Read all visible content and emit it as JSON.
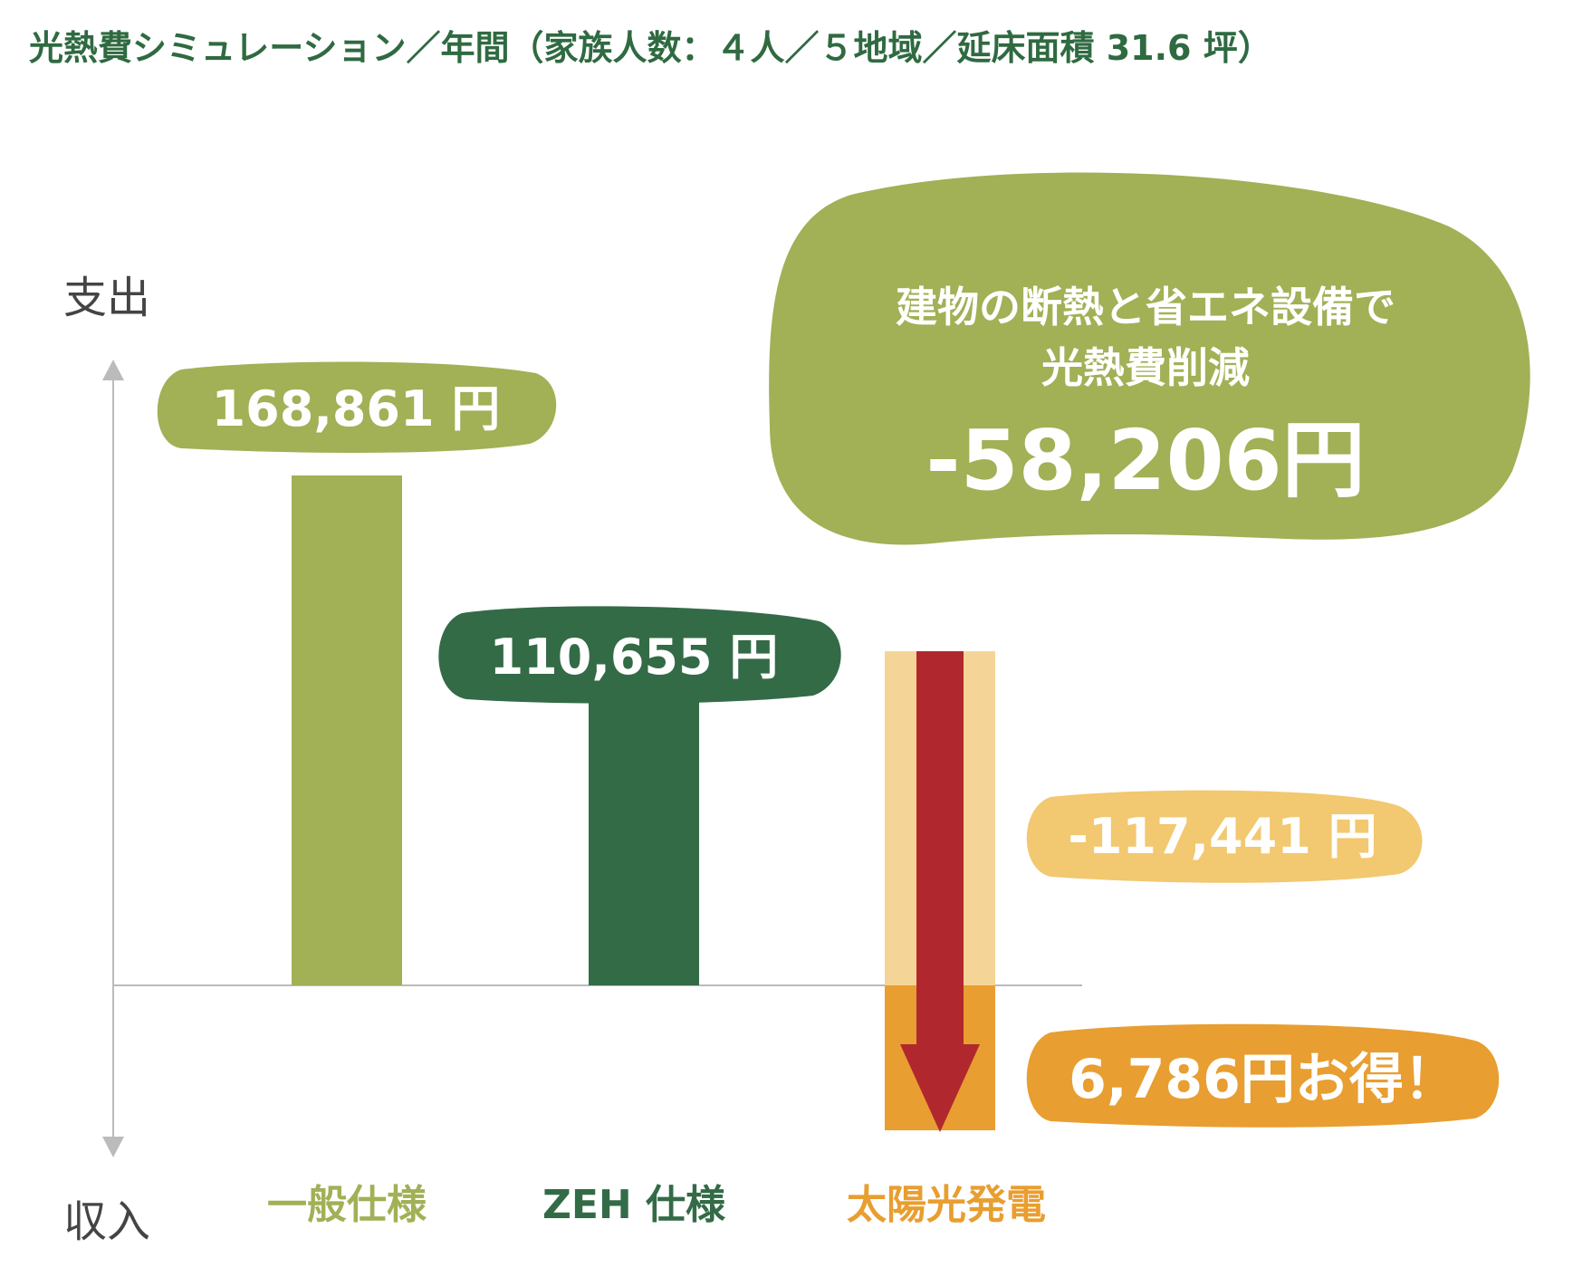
{
  "chart_data": {
    "type": "bar",
    "title": "光熱費シミュレーション／年間（家族人数：４人／５地域／延床面積 31.6 坪）",
    "ylabel_top": "支出",
    "ylabel_bottom": "収入",
    "unit": "円",
    "categories": [
      "一般仕様",
      "ZEH 仕様",
      "太陽光発電"
    ],
    "values": [
      168861,
      110655,
      -117441
    ],
    "value_labels": [
      "168,861 円",
      "110,655 円",
      "-117,441 円"
    ],
    "net_label": "6,786円お得！",
    "savings": {
      "line1": "建物の断熱と省エネ設備で",
      "line2": "光熱費削減",
      "amount": "-58,206円"
    },
    "colors": {
      "general": "#a2b056",
      "zeh": "#336b47",
      "solar_light": "#f5d597",
      "solar_label": "#f2c870",
      "solar_dark": "#e89e30",
      "arrow": "#b0282d",
      "title": "#2f6a41",
      "axis": "#bbbbbb"
    }
  }
}
